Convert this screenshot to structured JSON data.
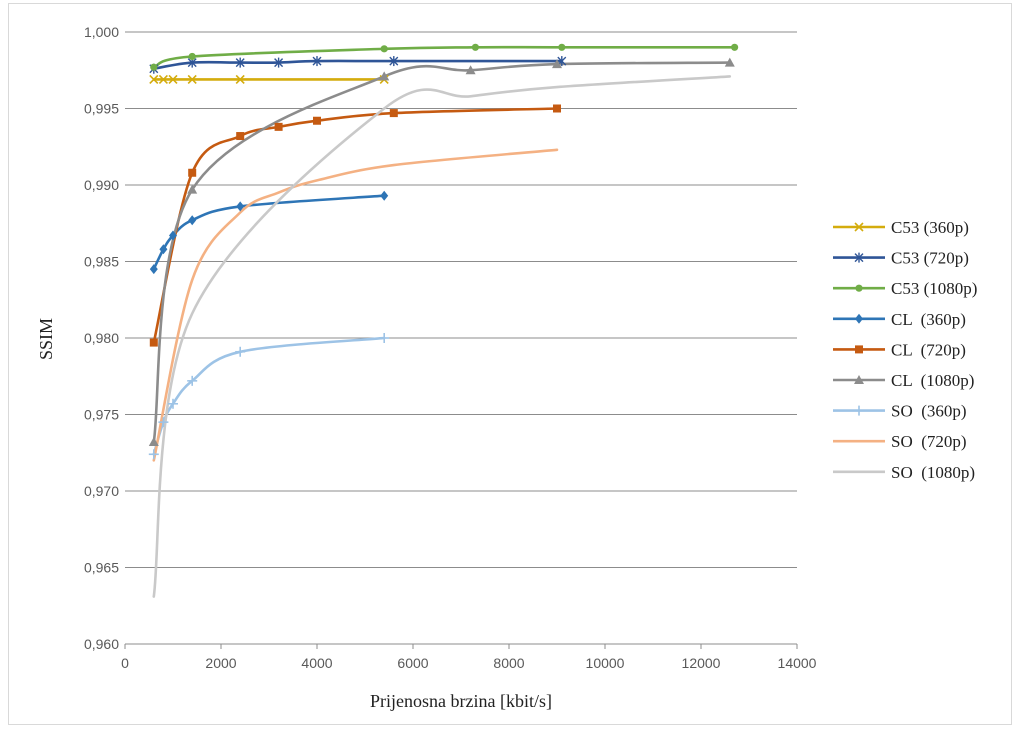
{
  "chart_data": {
    "type": "line",
    "title": "",
    "xlabel": "Prijenosna brzina [kbit/s]",
    "ylabel": "SSIM",
    "xlim": [
      0,
      14000
    ],
    "ylim": [
      0.96,
      1.0
    ],
    "x_ticks": [
      0,
      2000,
      4000,
      6000,
      8000,
      10000,
      12000,
      14000
    ],
    "x_tick_labels": [
      "0",
      "2000",
      "4000",
      "6000",
      "8000",
      "10000",
      "12000",
      "14000"
    ],
    "y_ticks": [
      0.96,
      0.965,
      0.97,
      0.975,
      0.98,
      0.985,
      0.99,
      0.995,
      1.0
    ],
    "y_tick_labels": [
      "0,960",
      "0,965",
      "0,970",
      "0,975",
      "0,980",
      "0,985",
      "0,990",
      "0,995",
      "1,000"
    ],
    "grid": "horizontal",
    "legend_position": "right",
    "series": [
      {
        "name": "C53 (360p)",
        "color": "#d4ac0d",
        "marker": "x",
        "x": [
          600,
          800,
          1000,
          1400,
          2400,
          5400
        ],
        "y": [
          0.9969,
          0.9969,
          0.9969,
          0.9969,
          0.9969,
          0.9969
        ]
      },
      {
        "name": "C53 (720p)",
        "color": "#2f5597",
        "marker": "star",
        "x": [
          600,
          1400,
          2400,
          3200,
          4000,
          5600,
          9100
        ],
        "y": [
          0.9976,
          0.998,
          0.998,
          0.998,
          0.9981,
          0.9981,
          0.9981
        ]
      },
      {
        "name": "C53 (1080p)",
        "color": "#70ad47",
        "marker": "circle",
        "x": [
          600,
          1400,
          5400,
          7300,
          9100,
          12700
        ],
        "y": [
          0.9977,
          0.9984,
          0.9989,
          0.999,
          0.999,
          0.999
        ]
      },
      {
        "name": "CL  (360p)",
        "color": "#2e75b6",
        "marker": "diamond",
        "x": [
          600,
          800,
          1000,
          1400,
          2400,
          5400
        ],
        "y": [
          0.9845,
          0.9858,
          0.9867,
          0.9877,
          0.9886,
          0.9893
        ]
      },
      {
        "name": "CL  (720p)",
        "color": "#c55a11",
        "marker": "square",
        "x": [
          600,
          1400,
          2400,
          3200,
          4000,
          5600,
          9000
        ],
        "y": [
          0.9797,
          0.9908,
          0.9932,
          0.9938,
          0.9942,
          0.9947,
          0.995
        ]
      },
      {
        "name": "CL  (1080p)",
        "color": "#8c8c8c",
        "marker": "triangle",
        "x": [
          600,
          1400,
          5400,
          7200,
          9000,
          12600
        ],
        "y": [
          0.9732,
          0.9897,
          0.9971,
          0.9975,
          0.9979,
          0.998
        ]
      },
      {
        "name": "SO  (360p)",
        "color": "#9dc3e6",
        "marker": "plus",
        "x": [
          600,
          800,
          1000,
          1400,
          2400,
          5400
        ],
        "y": [
          0.9724,
          0.9745,
          0.9757,
          0.9772,
          0.9791,
          0.98
        ]
      },
      {
        "name": "SO  (720p)",
        "color": "#f4b183",
        "marker": "none",
        "x": [
          600,
          1400,
          2400,
          3200,
          4000,
          5600,
          9000
        ],
        "y": [
          0.972,
          0.9838,
          0.9882,
          0.9895,
          0.9903,
          0.9913,
          0.9923
        ]
      },
      {
        "name": "SO  (1080p)",
        "color": "#c9c9c9",
        "marker": "none",
        "x": [
          600,
          1400,
          5400,
          7200,
          9000,
          12600
        ],
        "y": [
          0.9631,
          0.9816,
          0.995,
          0.9958,
          0.9964,
          0.9971
        ]
      }
    ]
  }
}
